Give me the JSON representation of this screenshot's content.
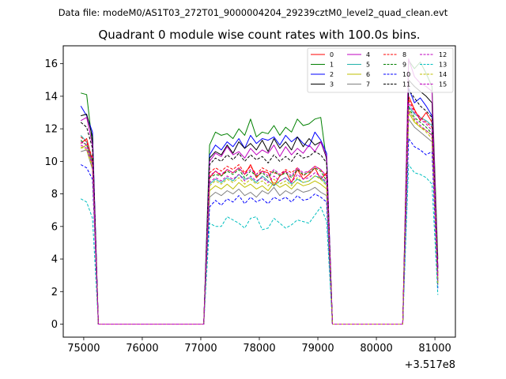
{
  "suptitle": "Data file: modeM0/AS1T03_272T01_9000004204_29239cztM0_level2_quad_clean.evt",
  "chart_data": {
    "type": "line",
    "title": "Quadrant 0 module wise count rates with 100.0s bins.",
    "xlabel": "",
    "ylabel": "",
    "x_offset_label": "+3.517e8",
    "xlim": [
      74650,
      81350
    ],
    "ylim": [
      -0.8,
      17.1
    ],
    "xticks": [
      75000,
      76000,
      77000,
      78000,
      79000,
      80000,
      81000
    ],
    "xtick_labels": [
      "75000",
      "76000",
      "77000",
      "78000",
      "79000",
      "80000",
      "81000"
    ],
    "yticks": [
      0,
      2,
      4,
      6,
      8,
      10,
      12,
      14,
      16
    ],
    "ytick_labels": [
      "0",
      "2",
      "4",
      "6",
      "8",
      "10",
      "12",
      "14",
      "16"
    ],
    "grid": false,
    "legend_position": "top-right",
    "legend_columns": 4,
    "x": [
      74950,
      75050,
      75150,
      75250,
      75350,
      75450,
      75550,
      75650,
      75750,
      75850,
      75950,
      76050,
      76150,
      76250,
      76350,
      76450,
      76550,
      76650,
      76750,
      76850,
      76950,
      77050,
      77150,
      77250,
      77350,
      77450,
      77550,
      77650,
      77750,
      77850,
      77950,
      78050,
      78150,
      78250,
      78350,
      78450,
      78550,
      78650,
      78750,
      78850,
      78950,
      79050,
      79150,
      79250,
      79350,
      79450,
      79550,
      79650,
      79750,
      79850,
      79950,
      80050,
      80150,
      80250,
      80350,
      80450,
      80550,
      80650,
      80750,
      80850,
      80950,
      81050
    ],
    "series": [
      {
        "name": "0",
        "color": "#ff0000",
        "dashed": false,
        "values": [
          11.1,
          11.4,
          10.0,
          0,
          0,
          0,
          0,
          0,
          0,
          0,
          0,
          0,
          0,
          0,
          0,
          0,
          0,
          0,
          0,
          0,
          0,
          0,
          9.0,
          9.4,
          9.1,
          9.5,
          9.3,
          9.6,
          9.2,
          9.8,
          9.0,
          9.4,
          9.3,
          8.5,
          9.1,
          9.4,
          8.7,
          9.5,
          8.9,
          9.2,
          9.6,
          8.9,
          9.3,
          0,
          0,
          0,
          0,
          0,
          0,
          0,
          0,
          0,
          0,
          0,
          0,
          0,
          14.0,
          13.2,
          12.5,
          13.0,
          12.4,
          3.0
        ]
      },
      {
        "name": "1",
        "color": "#008000",
        "dashed": false,
        "values": [
          14.2,
          14.1,
          11.0,
          0,
          0,
          0,
          0,
          0,
          0,
          0,
          0,
          0,
          0,
          0,
          0,
          0,
          0,
          0,
          0,
          0,
          0,
          0,
          11.0,
          11.8,
          11.6,
          11.7,
          11.4,
          12.0,
          11.6,
          12.6,
          11.5,
          11.8,
          11.7,
          12.2,
          11.6,
          12.1,
          11.8,
          12.6,
          12.2,
          12.3,
          12.6,
          12.7,
          10.0,
          0,
          0,
          0,
          0,
          0,
          0,
          0,
          0,
          0,
          0,
          0,
          0,
          0,
          16.2,
          15.7,
          16.1,
          15.4,
          14.6,
          4.0
        ]
      },
      {
        "name": "2",
        "color": "#0000ff",
        "dashed": false,
        "values": [
          13.4,
          12.8,
          11.8,
          0,
          0,
          0,
          0,
          0,
          0,
          0,
          0,
          0,
          0,
          0,
          0,
          0,
          0,
          0,
          0,
          0,
          0,
          0,
          10.4,
          11.0,
          10.7,
          11.2,
          10.9,
          11.4,
          10.8,
          11.6,
          11.1,
          11.4,
          11.3,
          11.5,
          11.0,
          11.6,
          11.2,
          11.5,
          11.1,
          10.9,
          11.8,
          11.3,
          10.5,
          0,
          0,
          0,
          0,
          0,
          0,
          0,
          0,
          0,
          0,
          0,
          0,
          0,
          14.5,
          13.6,
          13.9,
          13.4,
          12.8,
          3.4
        ]
      },
      {
        "name": "3",
        "color": "#000000",
        "dashed": false,
        "values": [
          12.8,
          12.9,
          11.5,
          0,
          0,
          0,
          0,
          0,
          0,
          0,
          0,
          0,
          0,
          0,
          0,
          0,
          0,
          0,
          0,
          0,
          0,
          0,
          10.2,
          10.6,
          10.4,
          11.0,
          10.5,
          11.2,
          10.8,
          11.1,
          10.7,
          11.3,
          10.6,
          11.4,
          10.8,
          11.2,
          10.7,
          11.5,
          10.9,
          11.4,
          11.0,
          11.2,
          10.2,
          0,
          0,
          0,
          0,
          0,
          0,
          0,
          0,
          0,
          0,
          0,
          0,
          0,
          15.0,
          14.6,
          14.3,
          14.0,
          13.6,
          3.5
        ]
      },
      {
        "name": "4",
        "color": "#bf00bf",
        "dashed": false,
        "values": [
          12.5,
          12.7,
          11.0,
          0,
          0,
          0,
          0,
          0,
          0,
          0,
          0,
          0,
          0,
          0,
          0,
          0,
          0,
          0,
          0,
          0,
          0,
          0,
          10.0,
          10.5,
          10.3,
          10.9,
          10.4,
          10.6,
          10.2,
          10.8,
          10.4,
          10.7,
          10.5,
          11.0,
          10.3,
          10.9,
          10.4,
          10.8,
          10.5,
          11.0,
          10.6,
          11.2,
          10.3,
          0,
          0,
          0,
          0,
          0,
          0,
          0,
          0,
          0,
          0,
          0,
          0,
          0,
          16.3,
          15.2,
          14.8,
          14.6,
          14.3,
          3.4
        ]
      },
      {
        "name": "5",
        "color": "#20b2aa",
        "dashed": false,
        "values": [
          11.6,
          11.2,
          9.9,
          0,
          0,
          0,
          0,
          0,
          0,
          0,
          0,
          0,
          0,
          0,
          0,
          0,
          0,
          0,
          0,
          0,
          0,
          0,
          8.6,
          8.9,
          8.7,
          9.0,
          8.8,
          9.2,
          8.9,
          9.0,
          8.7,
          9.1,
          8.8,
          8.5,
          8.8,
          9.0,
          8.6,
          8.9,
          8.7,
          8.8,
          9.1,
          9.0,
          8.6,
          0,
          0,
          0,
          0,
          0,
          0,
          0,
          0,
          0,
          0,
          0,
          0,
          0,
          13.4,
          12.9,
          12.7,
          12.5,
          12.2,
          2.6
        ]
      },
      {
        "name": "6",
        "color": "#bfbf00",
        "dashed": false,
        "values": [
          10.8,
          11.0,
          9.7,
          0,
          0,
          0,
          0,
          0,
          0,
          0,
          0,
          0,
          0,
          0,
          0,
          0,
          0,
          0,
          0,
          0,
          0,
          0,
          8.2,
          8.5,
          8.3,
          8.6,
          8.3,
          8.7,
          8.4,
          8.6,
          8.3,
          8.5,
          8.2,
          8.7,
          8.4,
          8.6,
          8.3,
          8.7,
          8.5,
          8.6,
          8.8,
          8.6,
          8.3,
          0,
          0,
          0,
          0,
          0,
          0,
          0,
          0,
          0,
          0,
          0,
          0,
          0,
          13.0,
          12.4,
          12.1,
          11.9,
          11.6,
          2.5
        ]
      },
      {
        "name": "7",
        "color": "#808080",
        "dashed": false,
        "values": [
          10.6,
          10.7,
          9.5,
          0,
          0,
          0,
          0,
          0,
          0,
          0,
          0,
          0,
          0,
          0,
          0,
          0,
          0,
          0,
          0,
          0,
          0,
          0,
          7.8,
          8.1,
          7.9,
          8.2,
          8.0,
          8.3,
          7.9,
          8.1,
          7.8,
          8.2,
          8.0,
          8.4,
          7.9,
          8.2,
          8.0,
          8.3,
          8.1,
          8.2,
          8.4,
          8.1,
          7.9,
          0,
          0,
          0,
          0,
          0,
          0,
          0,
          0,
          0,
          0,
          0,
          0,
          0,
          12.6,
          12.1,
          11.8,
          11.5,
          11.2,
          2.4
        ]
      },
      {
        "name": "8",
        "color": "#ff0000",
        "dashed": true,
        "values": [
          11.5,
          11.2,
          10.2,
          0,
          0,
          0,
          0,
          0,
          0,
          0,
          0,
          0,
          0,
          0,
          0,
          0,
          0,
          0,
          0,
          0,
          0,
          0,
          9.3,
          9.6,
          9.4,
          9.7,
          9.5,
          9.8,
          9.3,
          9.7,
          9.2,
          9.6,
          9.4,
          9.3,
          9.2,
          9.5,
          9.3,
          9.6,
          9.1,
          9.4,
          9.7,
          9.5,
          9.0,
          0,
          0,
          0,
          0,
          0,
          0,
          0,
          0,
          0,
          0,
          0,
          0,
          0,
          13.8,
          13.1,
          12.7,
          12.4,
          12.1,
          2.8
        ]
      },
      {
        "name": "9",
        "color": "#008000",
        "dashed": true,
        "values": [
          11.3,
          11.0,
          10.0,
          0,
          0,
          0,
          0,
          0,
          0,
          0,
          0,
          0,
          0,
          0,
          0,
          0,
          0,
          0,
          0,
          0,
          0,
          0,
          9.0,
          9.2,
          9.1,
          9.4,
          9.2,
          9.5,
          9.0,
          9.4,
          9.1,
          9.3,
          9.0,
          9.4,
          9.1,
          9.3,
          9.0,
          9.5,
          9.2,
          9.3,
          9.6,
          9.4,
          8.8,
          0,
          0,
          0,
          0,
          0,
          0,
          0,
          0,
          0,
          0,
          0,
          0,
          0,
          13.3,
          12.7,
          12.4,
          12.1,
          11.7,
          2.7
        ]
      },
      {
        "name": "10",
        "color": "#0000ff",
        "dashed": true,
        "values": [
          9.8,
          9.6,
          8.9,
          0,
          0,
          0,
          0,
          0,
          0,
          0,
          0,
          0,
          0,
          0,
          0,
          0,
          0,
          0,
          0,
          0,
          0,
          0,
          7.2,
          7.6,
          7.3,
          7.7,
          7.5,
          7.9,
          7.4,
          7.8,
          7.5,
          7.7,
          7.4,
          7.8,
          7.6,
          7.8,
          7.5,
          7.9,
          7.6,
          7.7,
          8.0,
          7.8,
          7.5,
          0,
          0,
          0,
          0,
          0,
          0,
          0,
          0,
          0,
          0,
          0,
          0,
          0,
          11.4,
          10.9,
          10.7,
          10.4,
          10.6,
          2.2
        ]
      },
      {
        "name": "11",
        "color": "#000000",
        "dashed": true,
        "values": [
          12.4,
          12.1,
          10.8,
          0,
          0,
          0,
          0,
          0,
          0,
          0,
          0,
          0,
          0,
          0,
          0,
          0,
          0,
          0,
          0,
          0,
          0,
          0,
          9.8,
          10.2,
          10.0,
          10.4,
          10.1,
          10.5,
          10.0,
          10.4,
          10.1,
          10.3,
          9.9,
          10.4,
          10.0,
          10.3,
          10.0,
          10.5,
          10.2,
          10.3,
          10.6,
          10.4,
          9.9,
          0,
          0,
          0,
          0,
          0,
          0,
          0,
          0,
          0,
          0,
          0,
          0,
          0,
          14.4,
          13.9,
          13.4,
          13.1,
          12.7,
          3.1
        ]
      },
      {
        "name": "12",
        "color": "#bf00bf",
        "dashed": true,
        "values": [
          11.0,
          10.8,
          9.8,
          0,
          0,
          0,
          0,
          0,
          0,
          0,
          0,
          0,
          0,
          0,
          0,
          0,
          0,
          0,
          0,
          0,
          0,
          0,
          8.7,
          9.0,
          8.8,
          9.1,
          8.9,
          9.2,
          8.8,
          9.1,
          8.8,
          9.0,
          8.7,
          9.1,
          8.8,
          9.0,
          8.7,
          9.2,
          8.9,
          9.0,
          9.3,
          9.1,
          8.7,
          0,
          0,
          0,
          0,
          0,
          0,
          0,
          0,
          0,
          0,
          0,
          0,
          0,
          13.1,
          12.6,
          12.2,
          11.9,
          11.6,
          2.6
        ]
      },
      {
        "name": "13",
        "color": "#00bfbf",
        "dashed": true,
        "values": [
          7.7,
          7.5,
          6.5,
          0,
          0,
          0,
          0,
          0,
          0,
          0,
          0,
          0,
          0,
          0,
          0,
          0,
          0,
          0,
          0,
          0,
          0,
          0,
          6.2,
          6.0,
          6.0,
          6.6,
          6.4,
          6.2,
          5.9,
          6.5,
          6.6,
          5.8,
          5.9,
          6.5,
          6.2,
          5.9,
          6.1,
          6.4,
          6.3,
          6.2,
          6.7,
          7.2,
          6.3,
          0,
          0,
          0,
          0,
          0,
          0,
          0,
          0,
          0,
          0,
          0,
          0,
          0,
          9.8,
          9.3,
          9.2,
          9.0,
          8.6,
          1.8
        ]
      },
      {
        "name": "14",
        "color": "#bfbf00",
        "dashed": true,
        "values": [
          10.9,
          10.7,
          9.6,
          0,
          0,
          0,
          0,
          0,
          0,
          0,
          0,
          0,
          0,
          0,
          0,
          0,
          0,
          0,
          0,
          0,
          0,
          0,
          8.5,
          8.8,
          8.6,
          8.9,
          8.7,
          9.0,
          8.6,
          8.9,
          8.6,
          8.8,
          8.5,
          8.9,
          8.6,
          8.8,
          8.5,
          9.0,
          8.7,
          8.8,
          9.1,
          8.9,
          8.5,
          0,
          0,
          0,
          0,
          0,
          0,
          0,
          0,
          0,
          0,
          0,
          0,
          0,
          13.2,
          12.5,
          12.1,
          11.8,
          11.4,
          2.5
        ]
      },
      {
        "name": "15",
        "color": "#bf00bf",
        "dashed": true,
        "values": [
          11.2,
          11.0,
          9.9,
          0,
          0,
          0,
          0,
          0,
          0,
          0,
          0,
          0,
          0,
          0,
          0,
          0,
          0,
          0,
          0,
          0,
          0,
          0,
          9.1,
          9.4,
          9.2,
          9.5,
          9.3,
          9.6,
          9.2,
          9.5,
          9.2,
          9.4,
          9.1,
          9.5,
          9.2,
          9.4,
          9.1,
          9.6,
          9.3,
          9.4,
          9.7,
          9.5,
          9.1,
          0,
          0,
          0,
          0,
          0,
          0,
          0,
          0,
          0,
          0,
          0,
          0,
          0,
          13.6,
          13.0,
          12.6,
          12.3,
          11.9,
          2.8
        ]
      }
    ]
  }
}
